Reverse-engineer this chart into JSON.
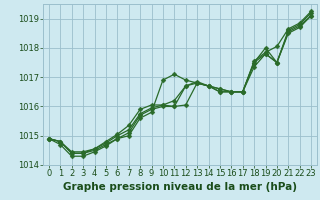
{
  "series": [
    {
      "x": [
        0,
        1,
        2,
        3,
        4,
        5,
        6,
        7,
        8,
        9,
        10,
        11,
        12,
        13,
        14,
        15,
        16,
        17,
        18,
        19,
        20,
        21,
        22,
        23
      ],
      "y": [
        1014.9,
        1014.8,
        1014.4,
        1014.4,
        1014.5,
        1014.7,
        1014.9,
        1015.0,
        1015.6,
        1015.8,
        1016.9,
        1017.1,
        1016.9,
        1016.8,
        1016.7,
        1016.6,
        1016.5,
        1016.5,
        1017.5,
        1018.0,
        1017.5,
        1018.6,
        1018.8,
        1019.2
      ]
    },
    {
      "x": [
        0,
        1,
        2,
        3,
        4,
        5,
        6,
        7,
        8,
        9,
        10,
        11,
        12,
        13,
        14,
        15,
        16,
        17,
        18,
        19,
        20,
        21,
        22,
        23
      ],
      "y": [
        1014.9,
        1014.7,
        1014.3,
        1014.3,
        1014.45,
        1014.65,
        1014.9,
        1015.1,
        1015.7,
        1015.9,
        1016.0,
        1016.0,
        1016.7,
        1016.8,
        1016.7,
        1016.5,
        1016.5,
        1016.5,
        1017.35,
        1017.8,
        1017.5,
        1018.55,
        1018.75,
        1019.1
      ]
    },
    {
      "x": [
        0,
        1,
        2,
        3,
        4,
        5,
        6,
        7,
        8,
        9,
        10,
        11,
        12,
        13,
        14,
        15,
        16,
        17,
        18,
        19,
        20,
        21,
        22,
        23
      ],
      "y": [
        1014.9,
        1014.8,
        1014.4,
        1014.4,
        1014.55,
        1014.75,
        1015.0,
        1015.2,
        1015.75,
        1015.95,
        1016.05,
        1016.0,
        1016.05,
        1016.8,
        1016.7,
        1016.5,
        1016.5,
        1016.5,
        1017.5,
        1017.8,
        1017.5,
        1018.5,
        1018.7,
        1019.1
      ]
    },
    {
      "x": [
        0,
        1,
        2,
        3,
        4,
        5,
        6,
        7,
        8,
        9,
        10,
        11,
        12,
        13,
        14,
        15,
        16,
        17,
        18,
        19,
        20,
        21,
        22,
        23
      ],
      "y": [
        1014.9,
        1014.8,
        1014.45,
        1014.45,
        1014.55,
        1014.8,
        1015.05,
        1015.35,
        1015.9,
        1016.05,
        1016.05,
        1016.2,
        1016.7,
        1016.85,
        1016.7,
        1016.6,
        1016.5,
        1016.5,
        1017.55,
        1017.85,
        1018.05,
        1018.65,
        1018.85,
        1019.25
      ]
    }
  ],
  "line_color": "#2a6b2a",
  "marker": "D",
  "marker_size": 2.5,
  "line_width": 0.9,
  "bg_color": "#cee9f0",
  "grid_color": "#9bbfcc",
  "xlabel": "Graphe pression niveau de la mer (hPa)",
  "xlabel_fontsize": 7.5,
  "xlabel_bold": true,
  "xlabel_color": "#1a4d1a",
  "tick_color": "#1a4d1a",
  "tick_fontsize": 6.0,
  "ylim": [
    1014.0,
    1019.5
  ],
  "yticks": [
    1014,
    1015,
    1016,
    1017,
    1018,
    1019
  ],
  "xlim": [
    -0.5,
    23.5
  ],
  "xticks": [
    0,
    1,
    2,
    3,
    4,
    5,
    6,
    7,
    8,
    9,
    10,
    11,
    12,
    13,
    14,
    15,
    16,
    17,
    18,
    19,
    20,
    21,
    22,
    23
  ]
}
